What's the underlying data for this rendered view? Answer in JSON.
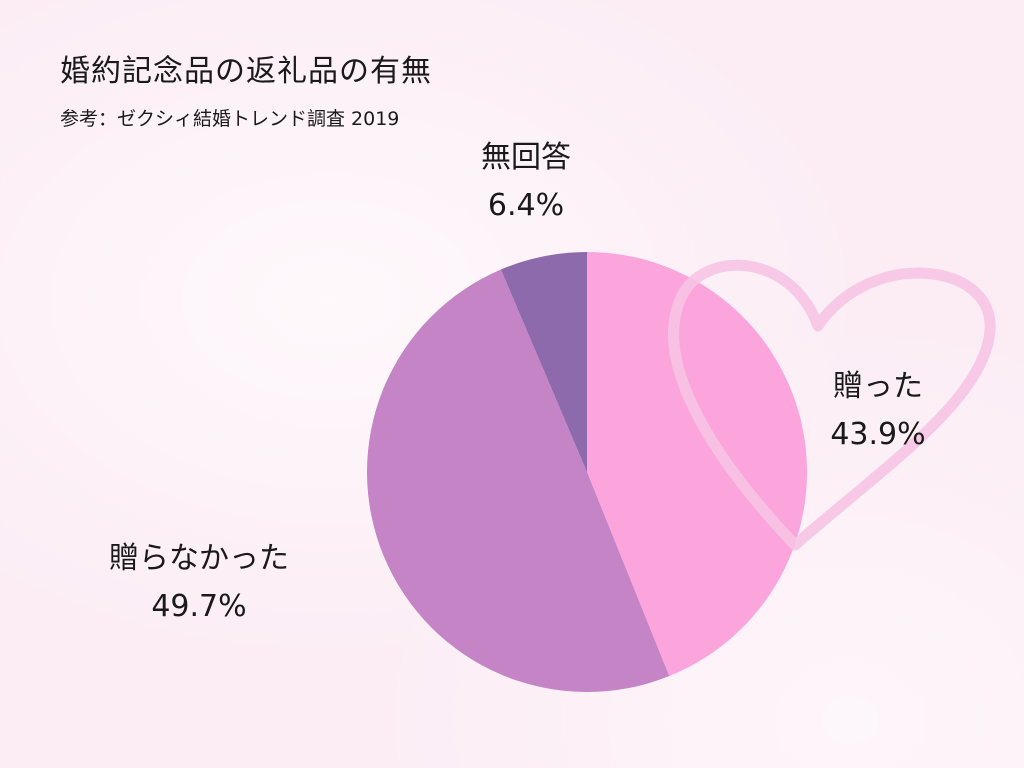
{
  "title": "婚約記念品の返礼品の有無",
  "subtitle": "参考：ゼクシィ結婚トレンド調査 2019",
  "chart_data": {
    "type": "pie",
    "title": "婚約記念品の返礼品の有無",
    "subtitle": "参考：ゼクシィ結婚トレンド調査 2019",
    "start_angle": "12 o'clock",
    "direction": "clockwise",
    "slices": [
      {
        "label": "贈った",
        "value": 43.9,
        "value_label": "43.9%",
        "color": "#fca5dc"
      },
      {
        "label": "贈らなかった",
        "value": 49.7,
        "value_label": "49.7%",
        "color": "#c484c6"
      },
      {
        "label": "無回答",
        "value": 6.4,
        "value_label": "6.4%",
        "color": "#8c6aac"
      }
    ]
  },
  "decoration": {
    "heart_icon": "heart-outline-icon",
    "heart_color": "#f7c4e4"
  }
}
